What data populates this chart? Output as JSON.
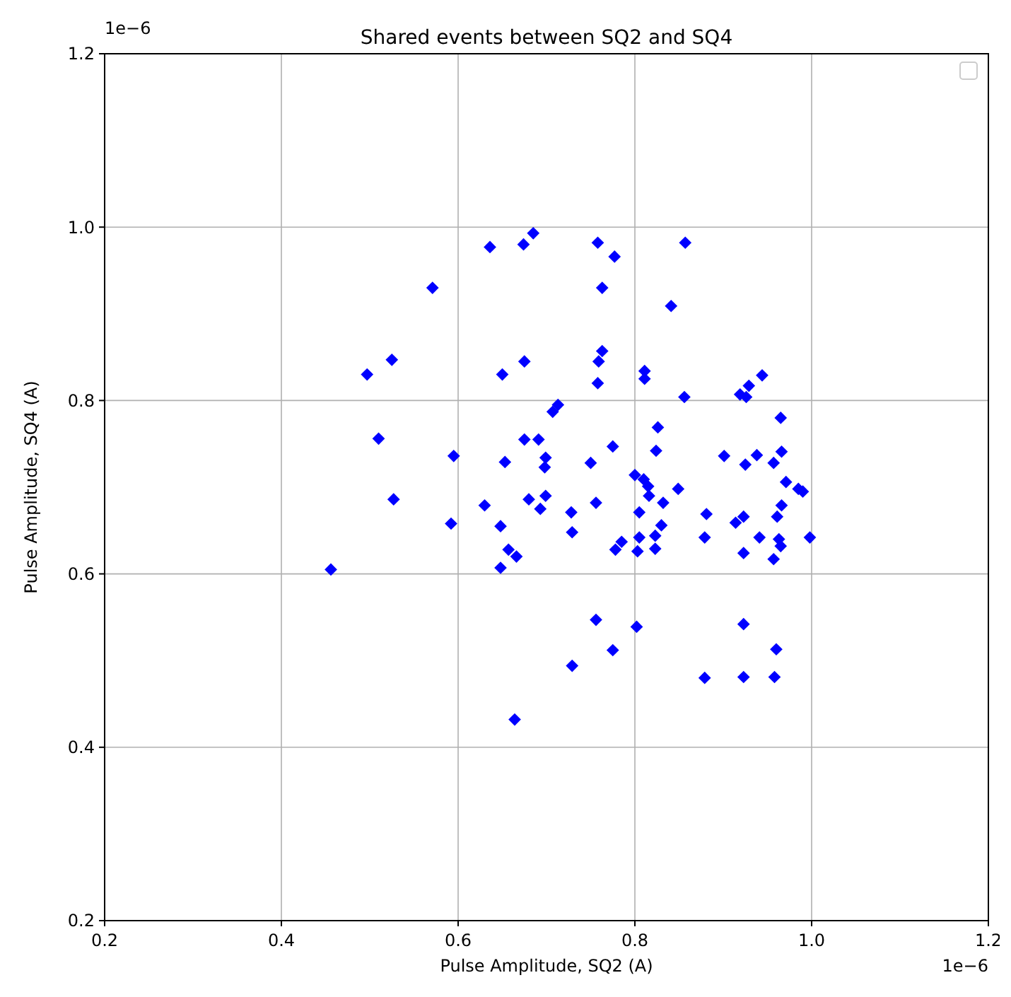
{
  "chart_data": {
    "type": "scatter",
    "title": "Shared events between SQ2 and SQ4",
    "xlabel": "Pulse Amplitude, SQ2 (A)",
    "ylabel": "Pulse Amplitude, SQ4 (A)",
    "annotations": [
      "1e−6",
      "1e−6"
    ],
    "xlim": [
      0.2,
      1.2
    ],
    "ylim": [
      0.2,
      1.2
    ],
    "xticks": [
      0.2,
      0.4,
      0.6,
      0.8,
      {
        "value": 1,
        "label": "1.0"
      },
      1.2
    ],
    "yticks": [
      0.2,
      0.4,
      0.6,
      0.8,
      {
        "value": 1,
        "label": "1.0"
      },
      1.2
    ],
    "grid": true,
    "marker": "diamond",
    "series": [
      {
        "color": "#0000ff",
        "x": [
          0.456,
          0.497,
          0.51,
          0.525,
          0.527,
          0.571,
          0.595,
          0.592,
          0.636,
          0.63,
          0.648,
          0.648,
          0.65,
          0.653,
          0.657,
          0.666,
          0.664,
          0.674,
          0.685,
          0.675,
          0.675,
          0.68,
          0.691,
          0.693,
          0.699,
          0.699,
          0.698,
          0.707,
          0.713,
          0.729,
          0.728,
          0.729,
          0.75,
          0.756,
          0.756,
          0.758,
          0.759,
          0.758,
          0.763,
          0.763,
          0.775,
          0.775,
          0.777,
          0.778,
          0.785,
          0.8,
          0.802,
          0.803,
          0.805,
          0.805,
          0.81,
          0.815,
          0.811,
          0.811,
          0.816,
          0.823,
          0.823,
          0.824,
          0.826,
          0.832,
          0.83,
          0.841,
          0.849,
          0.856,
          0.857,
          0.879,
          0.881,
          0.879,
          0.901,
          0.914,
          0.919,
          0.923,
          0.923,
          0.923,
          0.923,
          0.925,
          0.926,
          0.929,
          0.938,
          0.941,
          0.944,
          0.957,
          0.957,
          0.958,
          0.96,
          0.961,
          0.965,
          0.966,
          0.963,
          0.965,
          0.966,
          0.971,
          0.985,
          0.99,
          0.998
        ],
        "values": [
          0.605,
          0.83,
          0.756,
          0.847,
          0.686,
          0.93,
          0.736,
          0.658,
          0.977,
          0.679,
          0.655,
          0.607,
          0.83,
          0.729,
          0.628,
          0.62,
          0.432,
          0.98,
          0.993,
          0.845,
          0.755,
          0.686,
          0.755,
          0.675,
          0.69,
          0.734,
          0.723,
          0.787,
          0.795,
          0.494,
          0.671,
          0.648,
          0.728,
          0.547,
          0.682,
          0.82,
          0.845,
          0.982,
          0.857,
          0.93,
          0.747,
          0.512,
          0.966,
          0.628,
          0.637,
          0.714,
          0.539,
          0.626,
          0.642,
          0.671,
          0.709,
          0.701,
          0.834,
          0.825,
          0.69,
          0.629,
          0.644,
          0.742,
          0.769,
          0.682,
          0.656,
          0.909,
          0.698,
          0.804,
          0.982,
          0.642,
          0.669,
          0.48,
          0.736,
          0.659,
          0.807,
          0.666,
          0.542,
          0.624,
          0.481,
          0.726,
          0.804,
          0.817,
          0.737,
          0.642,
          0.829,
          0.728,
          0.617,
          0.481,
          0.513,
          0.666,
          0.78,
          0.741,
          0.64,
          0.632,
          0.679,
          0.706,
          0.698,
          0.695,
          0.642
        ]
      }
    ]
  }
}
